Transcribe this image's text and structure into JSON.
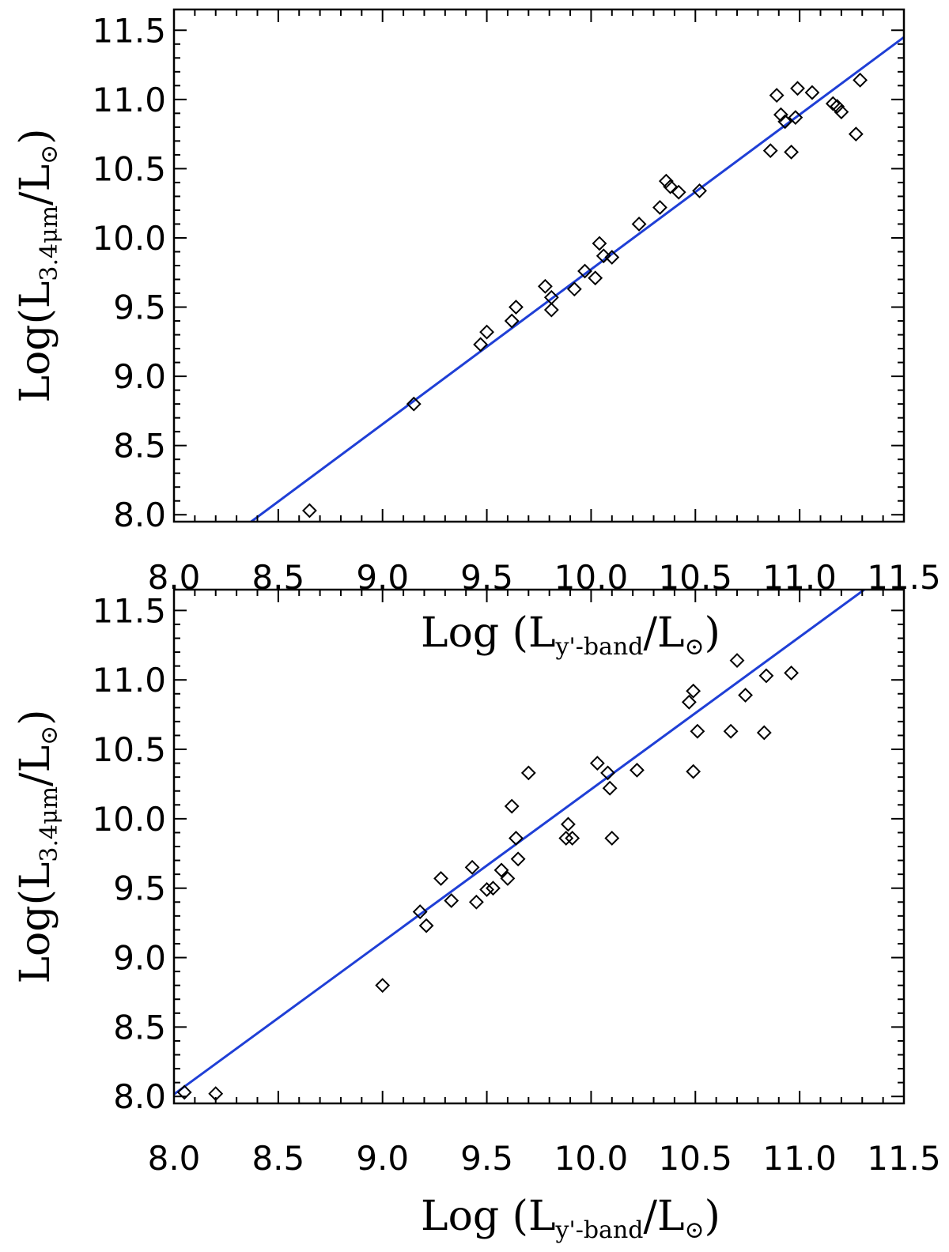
{
  "chart_data": [
    {
      "type": "scatter",
      "xlabel": {
        "main": "Log (L",
        "sub": "y'-band",
        "tail": "/L",
        "sym": "⊙",
        "close": ")"
      },
      "ylabel": {
        "main": "Log(L",
        "sub": "3.4μm",
        "tail": "/L",
        "sym": "⊙",
        "close": ")"
      },
      "xlim": [
        8.0,
        11.5
      ],
      "ylim": [
        7.95,
        11.65
      ],
      "xticks": [
        "8.0",
        "8.5",
        "9.0",
        "9.5",
        "10.0",
        "10.5",
        "11.0",
        "11.5"
      ],
      "yticks": [
        "8.0",
        "8.5",
        "9.0",
        "9.5",
        "10.0",
        "10.5",
        "11.0",
        "11.5"
      ],
      "fit_line": {
        "color": "#1f3fd6",
        "points": [
          [
            8.37,
            7.95
          ],
          [
            11.5,
            11.45
          ]
        ]
      },
      "series": [
        {
          "marker": "diamond-open",
          "points": [
            [
              8.65,
              8.03
            ],
            [
              9.15,
              8.8
            ],
            [
              9.47,
              9.23
            ],
            [
              9.5,
              9.32
            ],
            [
              9.62,
              9.4
            ],
            [
              9.64,
              9.5
            ],
            [
              9.78,
              9.65
            ],
            [
              9.81,
              9.57
            ],
            [
              9.81,
              9.48
            ],
            [
              9.92,
              9.63
            ],
            [
              9.97,
              9.76
            ],
            [
              10.02,
              9.71
            ],
            [
              10.04,
              9.96
            ],
            [
              10.06,
              9.87
            ],
            [
              10.1,
              9.86
            ],
            [
              10.23,
              10.1
            ],
            [
              10.33,
              10.22
            ],
            [
              10.36,
              10.41
            ],
            [
              10.38,
              10.37
            ],
            [
              10.42,
              10.33
            ],
            [
              10.52,
              10.34
            ],
            [
              10.86,
              10.63
            ],
            [
              10.89,
              11.03
            ],
            [
              10.91,
              10.89
            ],
            [
              10.93,
              10.84
            ],
            [
              10.96,
              10.62
            ],
            [
              10.98,
              10.87
            ],
            [
              10.99,
              11.08
            ],
            [
              11.06,
              11.05
            ],
            [
              11.16,
              10.97
            ],
            [
              11.18,
              10.95
            ],
            [
              11.2,
              10.91
            ],
            [
              11.27,
              10.75
            ],
            [
              11.29,
              11.14
            ]
          ]
        }
      ]
    },
    {
      "type": "scatter",
      "xlabel": {
        "main": "Log (L",
        "sub": "y'-band",
        "tail": "/L",
        "sym": "⊙",
        "close": ")"
      },
      "ylabel": {
        "main": "Log(L",
        "sub": "3.4μm",
        "tail": "/L",
        "sym": "⊙",
        "close": ")"
      },
      "xlim": [
        8.0,
        11.5
      ],
      "ylim": [
        7.95,
        11.65
      ],
      "xticks": [
        "8.0",
        "8.5",
        "9.0",
        "9.5",
        "10.0",
        "10.5",
        "11.0",
        "11.5"
      ],
      "yticks": [
        "8.0",
        "8.5",
        "9.0",
        "9.5",
        "10.0",
        "10.5",
        "11.0",
        "11.5"
      ],
      "fit_line": {
        "color": "#1f3fd6",
        "points": [
          [
            7.94,
            7.95
          ],
          [
            11.31,
            11.65
          ]
        ]
      },
      "series": [
        {
          "marker": "diamond-open",
          "points": [
            [
              8.05,
              8.03
            ],
            [
              8.2,
              8.02
            ],
            [
              9.0,
              8.8
            ],
            [
              9.18,
              9.33
            ],
            [
              9.21,
              9.23
            ],
            [
              9.28,
              9.57
            ],
            [
              9.33,
              9.41
            ],
            [
              9.43,
              9.65
            ],
            [
              9.45,
              9.4
            ],
            [
              9.5,
              9.49
            ],
            [
              9.53,
              9.5
            ],
            [
              9.57,
              9.63
            ],
            [
              9.6,
              9.57
            ],
            [
              9.62,
              10.09
            ],
            [
              9.64,
              9.86
            ],
            [
              9.65,
              9.71
            ],
            [
              9.7,
              10.33
            ],
            [
              9.88,
              9.86
            ],
            [
              9.89,
              9.96
            ],
            [
              9.91,
              9.86
            ],
            [
              10.03,
              10.4
            ],
            [
              10.08,
              10.33
            ],
            [
              10.09,
              10.22
            ],
            [
              10.1,
              9.86
            ],
            [
              10.22,
              10.35
            ],
            [
              10.47,
              10.84
            ],
            [
              10.49,
              10.92
            ],
            [
              10.49,
              10.34
            ],
            [
              10.51,
              10.63
            ],
            [
              10.67,
              10.63
            ],
            [
              10.7,
              11.14
            ],
            [
              10.74,
              10.89
            ],
            [
              10.83,
              10.62
            ],
            [
              10.84,
              11.03
            ],
            [
              10.96,
              11.05
            ]
          ]
        }
      ]
    }
  ]
}
